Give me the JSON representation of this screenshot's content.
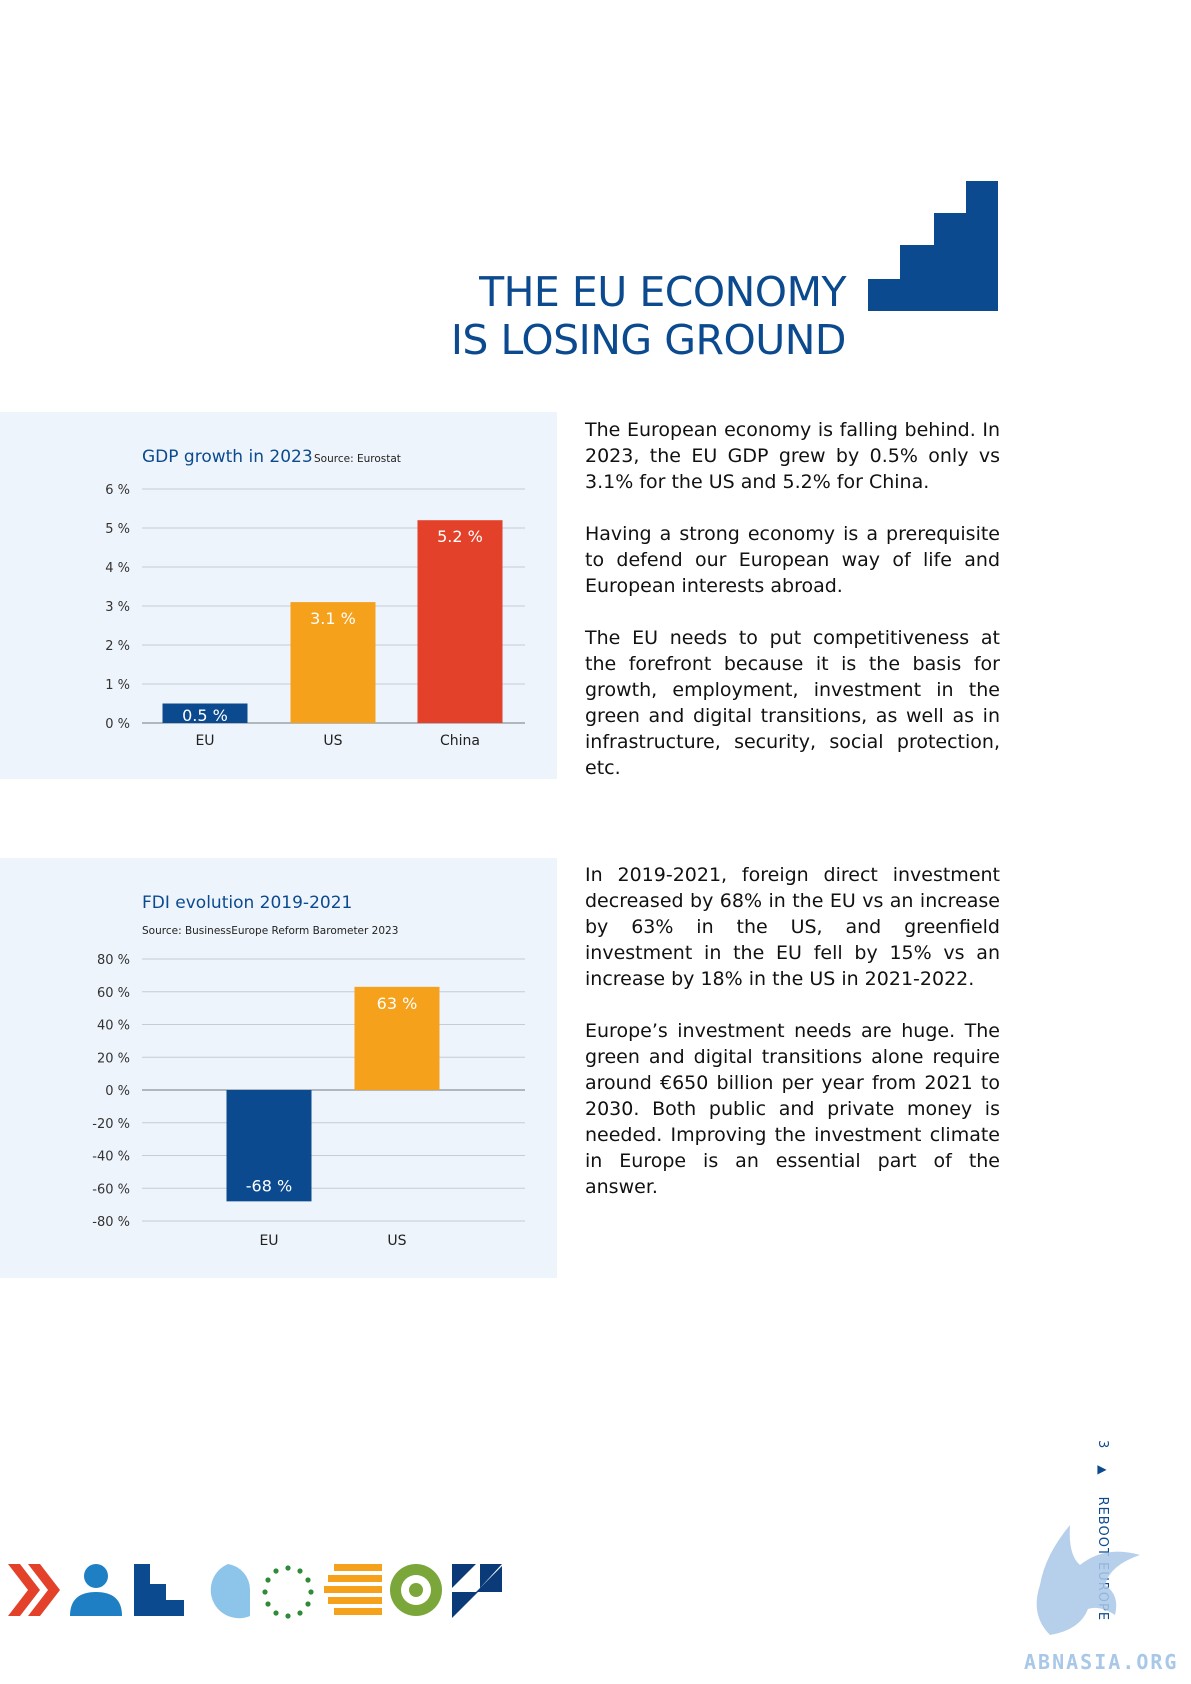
{
  "heading": {
    "line1": "THE EU ECONOMY",
    "line2": "IS LOSING GROUND"
  },
  "colors": {
    "eu_blue": "#0b4a8f",
    "us_orange": "#f5a11c",
    "china_red": "#e3412a",
    "panel_bg": "#eef4fb",
    "watermark": "#a9c8e8"
  },
  "chart_data": [
    {
      "type": "bar",
      "title": "GDP growth in 2023",
      "source": "Source: Eurostat",
      "categories": [
        "EU",
        "US",
        "China"
      ],
      "values": [
        0.5,
        3.1,
        5.2
      ],
      "value_labels": [
        "0.5 %",
        "3.1 %",
        "5.2 %"
      ],
      "yticks": [
        0,
        1,
        2,
        3,
        4,
        5,
        6
      ],
      "ytick_labels": [
        "0 %",
        "1 %",
        "2 %",
        "3 %",
        "4 %",
        "5 %",
        "6 %"
      ],
      "ylim": [
        0,
        6
      ],
      "grid": true,
      "bar_colors": [
        "#0b4a8f",
        "#f5a11c",
        "#e3412a"
      ]
    },
    {
      "type": "bar",
      "title": "FDI evolution 2019-2021",
      "source": "Source: BusinessEurope Reform Barometer 2023",
      "categories": [
        "EU",
        "US"
      ],
      "values": [
        -68,
        63
      ],
      "value_labels": [
        "-68 %",
        "63 %"
      ],
      "yticks": [
        80,
        60,
        40,
        20,
        0,
        -20,
        -40,
        -60,
        -80
      ],
      "ytick_labels": [
        "80 %",
        "60 %",
        "40 %",
        "20 %",
        "0 %",
        "-20 %",
        "-40 %",
        "-60 %",
        "-80 %"
      ],
      "ylim": [
        -80,
        80
      ],
      "grid": true,
      "bar_colors": [
        "#0b4a8f",
        "#f5a11c"
      ]
    }
  ],
  "text1": {
    "p1": "The European economy is falling behind. In 2023, the EU GDP grew by 0.5% only vs 3.1% for the US and 5.2% for China.",
    "p2": "Having a strong economy is a prerequisite to defend our European way of life and European interests abroad.",
    "p3": "The EU needs to put competitiveness at the forefront because it is the basis for growth, employment, investment in the green and digital transitions, as well as in infrastructure, security, social protection, etc."
  },
  "text2": {
    "p1": "In 2019-2021, foreign direct investment decreased by 68% in the EU vs an increase by 63% in the US, and greenfield investment in the EU fell by 15% vs an increase by 18% in the US in 2021-2022.",
    "p2": "Europe’s investment needs are huge. The green and digital transitions alone require around €650 billion per year from 2021 to 2030. Both public and private money is needed. Improving the investment climate in Europe is an essential part of the answer."
  },
  "footer": {
    "page_number": "3",
    "section": "REBOOT EUROPE",
    "watermark": "ABNASIA.ORG",
    "icons": [
      "double-chevron-icon",
      "person-icon",
      "stairs-icon",
      "speech-bubble-icon",
      "eu-stars-icon",
      "stripes-icon",
      "target-icon",
      "flag-shapes-icon"
    ]
  }
}
